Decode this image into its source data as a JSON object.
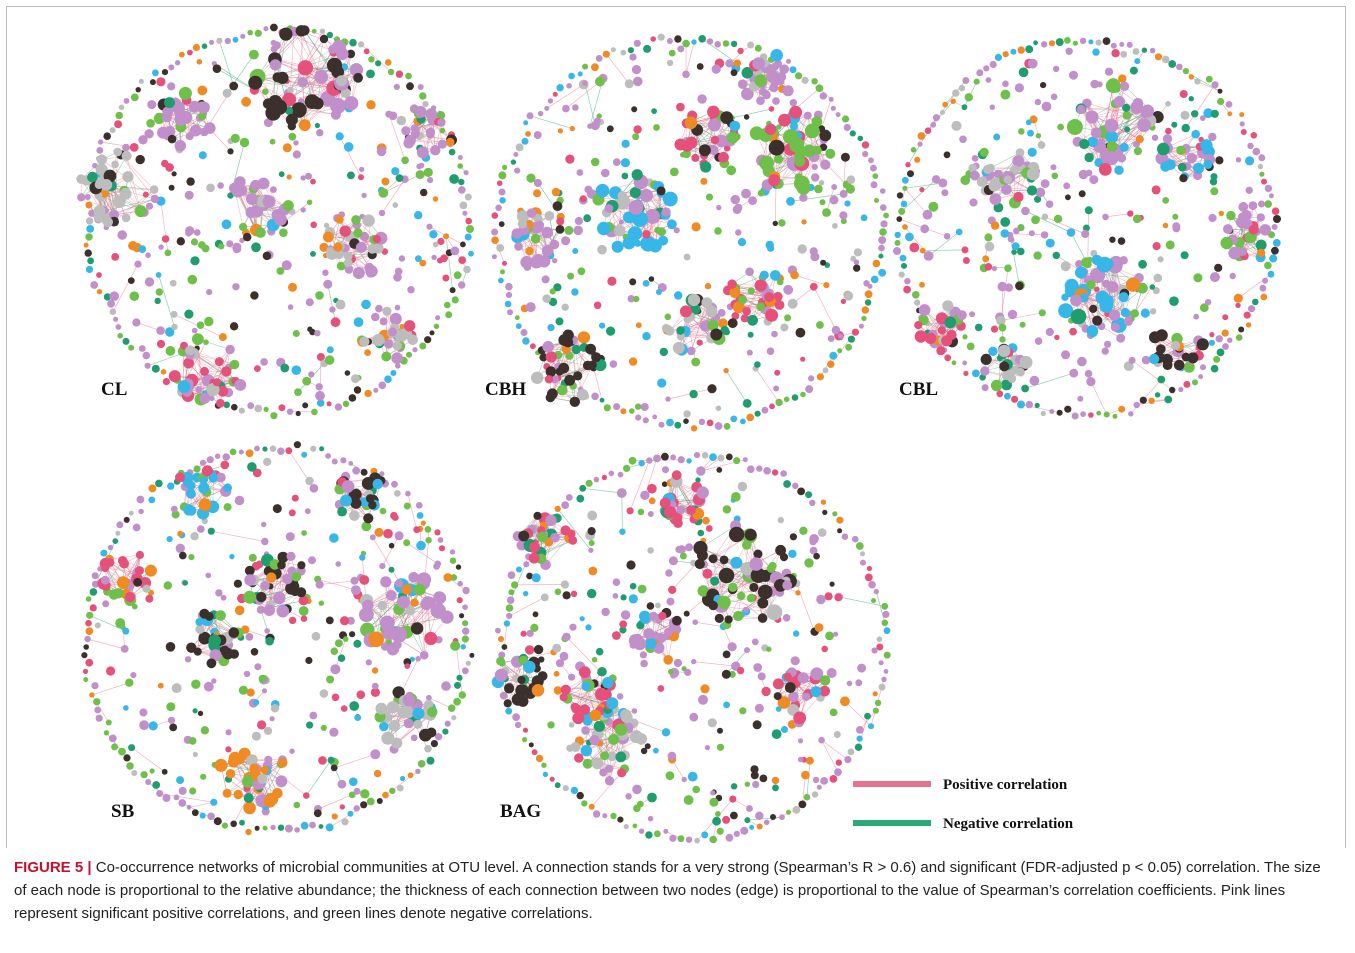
{
  "networks": [
    {
      "label": "CL",
      "palette": [
        "#c18fc9",
        "#c18fc9",
        "#c18fc9",
        "#c18fc9",
        "#6fc04a",
        "#6fc04a",
        "#bdbdbd",
        "#37b7e8",
        "#3b302c",
        "#f08a23",
        "#e5517b",
        "#1f9d6f"
      ]
    },
    {
      "label": "CBH",
      "palette": [
        "#c18fc9",
        "#c18fc9",
        "#c18fc9",
        "#c18fc9",
        "#6fc04a",
        "#6fc04a",
        "#bdbdbd",
        "#37b7e8",
        "#3b302c",
        "#f08a23",
        "#e5517b",
        "#1f9d6f"
      ]
    },
    {
      "label": "CBL",
      "palette": [
        "#c18fc9",
        "#c18fc9",
        "#c18fc9",
        "#c18fc9",
        "#6fc04a",
        "#6fc04a",
        "#bdbdbd",
        "#37b7e8",
        "#3b302c",
        "#f08a23",
        "#e5517b",
        "#1f9d6f"
      ]
    },
    {
      "label": "SB",
      "palette": [
        "#c18fc9",
        "#c18fc9",
        "#c18fc9",
        "#c18fc9",
        "#6fc04a",
        "#6fc04a",
        "#bdbdbd",
        "#37b7e8",
        "#3b302c",
        "#f08a23",
        "#e5517b",
        "#1f9d6f"
      ]
    },
    {
      "label": "BAG",
      "palette": [
        "#c18fc9",
        "#c18fc9",
        "#c18fc9",
        "#c18fc9",
        "#6fc04a",
        "#6fc04a",
        "#bdbdbd",
        "#37b7e8",
        "#3b302c",
        "#f08a23",
        "#e5517b",
        "#1f9d6f"
      ]
    }
  ],
  "legend": {
    "positive": {
      "label": "Positive correlation",
      "color": "#e8738e"
    },
    "negative": {
      "label": "Negative correlation",
      "color": "#2aa877"
    }
  },
  "caption": {
    "figure_label": "FIGURE 5",
    "separator": "|",
    "text": "Co-occurrence networks of microbial communities at OTU level. A connection stands for a very strong (Spearman’s R > 0.6) and significant (FDR-adjusted p < 0.05) correlation. The size of each node is proportional to the relative abundance; the thickness of each connection between two nodes (edge) is proportional to the value of Spearman’s correlation coefficients. Pink lines represent significant positive correlations, and green lines denote negative correlations."
  }
}
